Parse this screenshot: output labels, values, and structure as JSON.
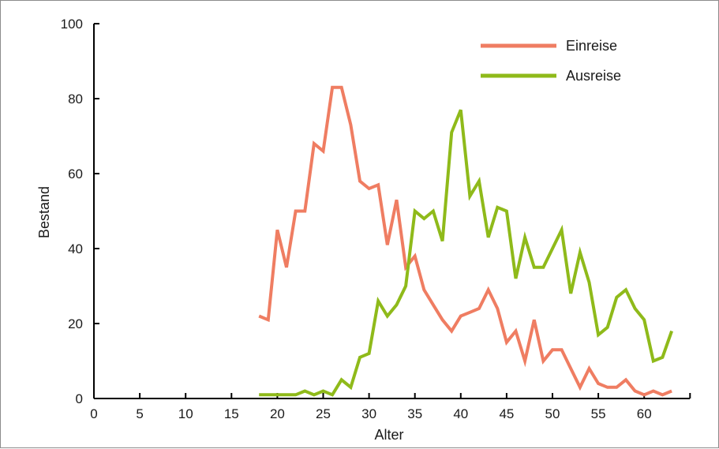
{
  "chart_data": {
    "type": "line",
    "title": "",
    "xlabel": "Alter",
    "ylabel": "Bestand",
    "xlim": [
      0,
      65
    ],
    "ylim": [
      0,
      100
    ],
    "xticks": [
      0,
      5,
      10,
      15,
      20,
      25,
      30,
      35,
      40,
      45,
      50,
      55,
      60
    ],
    "yticks": [
      0,
      20,
      40,
      60,
      80,
      100
    ],
    "grid": false,
    "legend_position": "top-right",
    "series": [
      {
        "name": "Einreise",
        "color": "#ef7d62",
        "x": [
          18,
          19,
          20,
          21,
          22,
          23,
          24,
          25,
          26,
          27,
          28,
          29,
          30,
          31,
          32,
          33,
          34,
          35,
          36,
          37,
          38,
          39,
          40,
          41,
          42,
          43,
          44,
          45,
          46,
          47,
          48,
          49,
          50,
          51,
          52,
          53,
          54,
          55,
          56,
          57,
          58,
          59,
          60,
          61,
          62,
          63
        ],
        "y": [
          22,
          21,
          45,
          35,
          50,
          50,
          68,
          66,
          83,
          83,
          73,
          58,
          56,
          57,
          41,
          53,
          35,
          38,
          29,
          25,
          21,
          18,
          22,
          23,
          24,
          29,
          24,
          15,
          18,
          10,
          21,
          10,
          13,
          13,
          8,
          3,
          8,
          4,
          3,
          3,
          5,
          2,
          1,
          2,
          1,
          2
        ]
      },
      {
        "name": "Ausreise",
        "color": "#8fba1a",
        "x": [
          18,
          19,
          20,
          21,
          22,
          23,
          24,
          25,
          26,
          27,
          28,
          29,
          30,
          31,
          32,
          33,
          34,
          35,
          36,
          37,
          38,
          39,
          40,
          41,
          42,
          43,
          44,
          45,
          46,
          47,
          48,
          49,
          50,
          51,
          52,
          53,
          54,
          55,
          56,
          57,
          58,
          59,
          60,
          61,
          62,
          63
        ],
        "y": [
          1,
          1,
          1,
          1,
          1,
          2,
          1,
          2,
          1,
          5,
          3,
          11,
          12,
          26,
          22,
          25,
          30,
          50,
          48,
          50,
          42,
          71,
          77,
          54,
          58,
          43,
          51,
          50,
          32,
          43,
          35,
          35,
          40,
          45,
          28,
          39,
          31,
          17,
          19,
          27,
          29,
          24,
          21,
          10,
          11,
          18
        ]
      }
    ]
  }
}
